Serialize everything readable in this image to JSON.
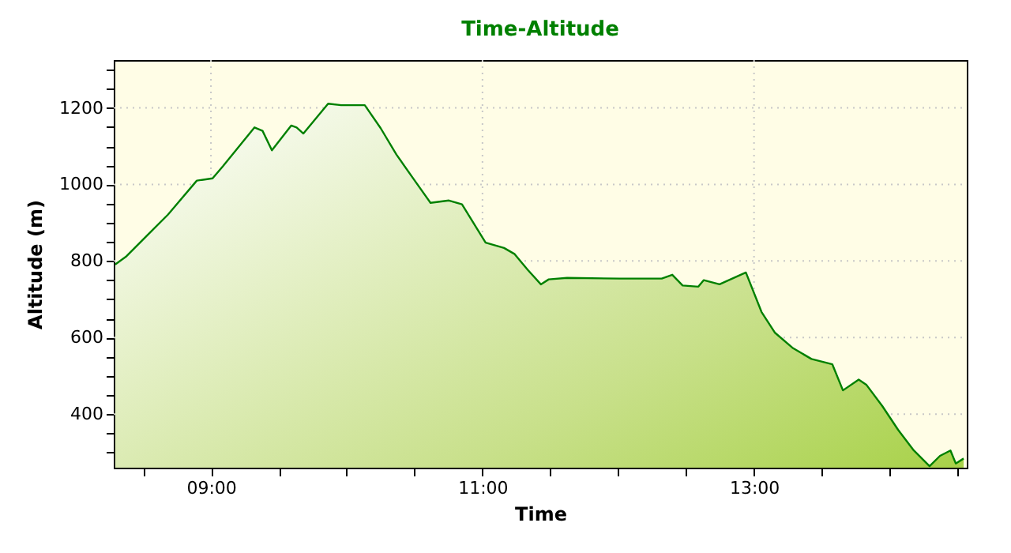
{
  "chart_data": {
    "type": "area",
    "title": "Time-Altitude",
    "xlabel": "Time",
    "ylabel": "Altitude (m)",
    "x": [
      8.295,
      8.373,
      8.528,
      8.683,
      8.896,
      9.012,
      9.089,
      9.321,
      9.38,
      9.449,
      9.592,
      9.631,
      9.681,
      9.863,
      9.959,
      10.133,
      10.25,
      10.366,
      10.501,
      10.617,
      10.753,
      10.849,
      11.023,
      11.159,
      11.237,
      11.333,
      11.43,
      11.488,
      11.623,
      12.01,
      12.32,
      12.398,
      12.474,
      12.59,
      12.63,
      12.746,
      12.94,
      13.055,
      13.153,
      13.288,
      13.423,
      13.577,
      13.655,
      13.771,
      13.829,
      13.945,
      14.061,
      14.177,
      14.293,
      14.37,
      14.447,
      14.486,
      14.544
    ],
    "series": [
      {
        "color": "#008000",
        "values": [
          791,
          811,
          866,
          921,
          1010,
          1016,
          1048,
          1149,
          1140,
          1089,
          1154,
          1149,
          1133,
          1211,
          1207,
          1207,
          1147,
          1078,
          1010,
          952,
          958,
          948,
          848,
          834,
          818,
          777,
          739,
          752,
          756,
          754,
          754,
          764,
          736,
          733,
          750,
          739,
          770,
          667,
          613,
          572,
          544,
          530,
          462,
          490,
          476,
          421,
          359,
          305,
          264,
          291,
          305,
          271,
          284
        ]
      }
    ],
    "xlim": [
      8.284,
      14.567
    ],
    "xticks": [
      {
        "value": 8.5,
        "label": null
      },
      {
        "value": 9,
        "label": "09:00"
      },
      {
        "value": 9.5,
        "label": null
      },
      {
        "value": 10,
        "label": null
      },
      {
        "value": 10.5,
        "label": null
      },
      {
        "value": 11,
        "label": "11:00"
      },
      {
        "value": 11.5,
        "label": null
      },
      {
        "value": 12,
        "label": null
      },
      {
        "value": 12.5,
        "label": null
      },
      {
        "value": 13,
        "label": "13:00"
      },
      {
        "value": 13.5,
        "label": null
      },
      {
        "value": 14,
        "label": null
      },
      {
        "value": 14.5,
        "label": null
      }
    ],
    "ylim": [
      260,
      1325
    ],
    "yticks": [
      {
        "value": 300,
        "label": null
      },
      {
        "value": 350,
        "label": null
      },
      400,
      {
        "value": 450,
        "label": null
      },
      {
        "value": 500,
        "label": null
      },
      {
        "value": 550,
        "label": null
      },
      600,
      {
        "value": 650,
        "label": null
      },
      {
        "value": 700,
        "label": null
      },
      {
        "value": 750,
        "label": null
      },
      800,
      {
        "value": 850,
        "label": null
      },
      {
        "value": 900,
        "label": null
      },
      {
        "value": 950,
        "label": null
      },
      1000,
      {
        "value": 1050,
        "label": null
      },
      {
        "value": 1100,
        "label": null
      },
      {
        "value": 1150,
        "label": null
      },
      1200,
      {
        "value": 1250,
        "label": null
      },
      {
        "value": 1300,
        "label": null
      }
    ],
    "grid": true,
    "marker": "none",
    "line_style": "solid"
  }
}
